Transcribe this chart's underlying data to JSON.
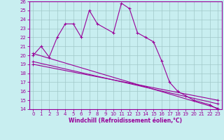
{
  "xlabel": "Windchill (Refroidissement éolien,°C)",
  "background_color": "#c8eef0",
  "grid_color": "#a0c8c8",
  "line_color": "#990099",
  "series1_x": [
    0,
    1,
    2,
    3,
    4,
    5,
    6,
    7,
    8,
    10,
    11,
    12,
    13,
    14,
    15,
    16,
    17,
    18,
    19,
    20,
    22,
    23
  ],
  "series1_y": [
    20.0,
    21.0,
    19.8,
    22.0,
    23.5,
    23.5,
    22.0,
    25.0,
    23.5,
    22.5,
    25.8,
    25.2,
    22.5,
    22.0,
    21.5,
    19.4,
    17.0,
    16.0,
    15.5,
    15.0,
    14.5,
    14.0
  ],
  "series2_x": [
    0,
    23
  ],
  "series2_y": [
    20.2,
    14.1
  ],
  "series3_x": [
    0,
    23
  ],
  "series3_y": [
    19.3,
    14.6
  ],
  "series4_x": [
    0,
    23
  ],
  "series4_y": [
    19.0,
    15.0
  ],
  "ylim": [
    14,
    26
  ],
  "xlim": [
    -0.5,
    23.5
  ],
  "yticks": [
    14,
    15,
    16,
    17,
    18,
    19,
    20,
    21,
    22,
    23,
    24,
    25,
    26
  ],
  "xticks": [
    0,
    1,
    2,
    3,
    4,
    5,
    6,
    7,
    8,
    9,
    10,
    11,
    12,
    13,
    14,
    15,
    16,
    17,
    18,
    19,
    20,
    21,
    22,
    23
  ],
  "tick_fontsize": 5.0,
  "xlabel_fontsize": 5.5
}
